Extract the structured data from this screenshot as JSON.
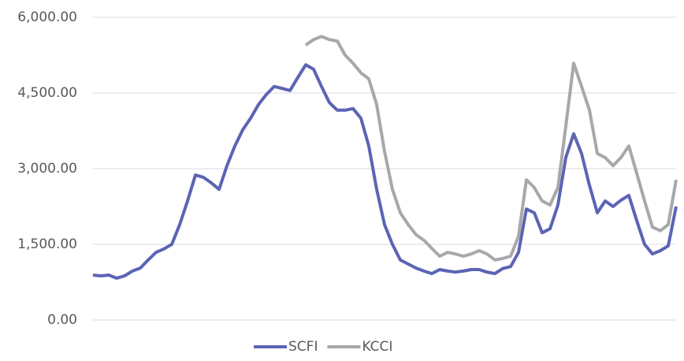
{
  "chart_data": {
    "type": "line",
    "x": [
      0,
      1,
      2,
      3,
      4,
      5,
      6,
      7,
      8,
      9,
      10,
      11,
      12,
      13,
      14,
      15,
      16,
      17,
      18,
      19,
      20,
      21,
      22,
      23,
      24,
      25,
      26,
      27,
      28,
      29,
      30,
      31,
      32,
      33,
      34,
      35,
      36,
      37,
      38,
      39,
      40,
      41,
      42,
      43,
      44,
      45,
      46,
      47,
      48,
      49,
      50,
      51,
      52,
      53,
      54,
      55,
      56,
      57,
      58,
      59,
      60,
      61,
      62,
      63,
      64,
      65,
      66,
      67,
      68,
      69,
      70,
      71,
      72,
      73,
      74
    ],
    "xlim": [
      0,
      74
    ],
    "ylim": [
      0,
      6000
    ],
    "yticks": [
      {
        "value": 0,
        "label": "0.00"
      },
      {
        "value": 1500,
        "label": "1,500.00"
      },
      {
        "value": 3000,
        "label": "3,000.00"
      },
      {
        "value": 4500,
        "label": "4,500.00"
      },
      {
        "value": 6000,
        "label": "6,000.00"
      }
    ],
    "grid": true,
    "legend": "bottom",
    "series": [
      {
        "name": "SCFI",
        "color": "#5b64b4",
        "values": [
          890,
          875,
          890,
          830,
          875,
          970,
          1030,
          1190,
          1340,
          1410,
          1500,
          1890,
          2360,
          2875,
          2830,
          2720,
          2590,
          3060,
          3450,
          3770,
          4000,
          4270,
          4470,
          4630,
          4590,
          4550,
          4810,
          5060,
          4970,
          4630,
          4310,
          4160,
          4160,
          4190,
          4000,
          3450,
          2590,
          1890,
          1500,
          1190,
          1110,
          1030,
          970,
          920,
          1000,
          970,
          950,
          970,
          1000,
          1000,
          950,
          920,
          1020,
          1060,
          1340,
          2200,
          2125,
          1730,
          1810,
          2280,
          3220,
          3690,
          3300,
          2670,
          2125,
          2360,
          2250,
          2375,
          2470,
          1970,
          1500,
          1310,
          1375,
          1470,
          2250
        ]
      },
      {
        "name": "KCCI",
        "color": "#a7a8ab",
        "values": [
          null,
          null,
          null,
          null,
          null,
          null,
          null,
          null,
          null,
          null,
          null,
          null,
          null,
          null,
          null,
          null,
          null,
          null,
          null,
          null,
          null,
          null,
          null,
          null,
          null,
          null,
          null,
          5450,
          5560,
          5620,
          5560,
          5530,
          5250,
          5090,
          4900,
          4780,
          4270,
          3340,
          2590,
          2125,
          1890,
          1690,
          1580,
          1420,
          1265,
          1340,
          1310,
          1265,
          1310,
          1375,
          1310,
          1190,
          1220,
          1265,
          1660,
          2780,
          2625,
          2360,
          2280,
          2625,
          3840,
          5090,
          4630,
          4160,
          3300,
          3220,
          3060,
          3220,
          3450,
          2910,
          2360,
          1840,
          1770,
          1890,
          2780
        ]
      }
    ]
  }
}
